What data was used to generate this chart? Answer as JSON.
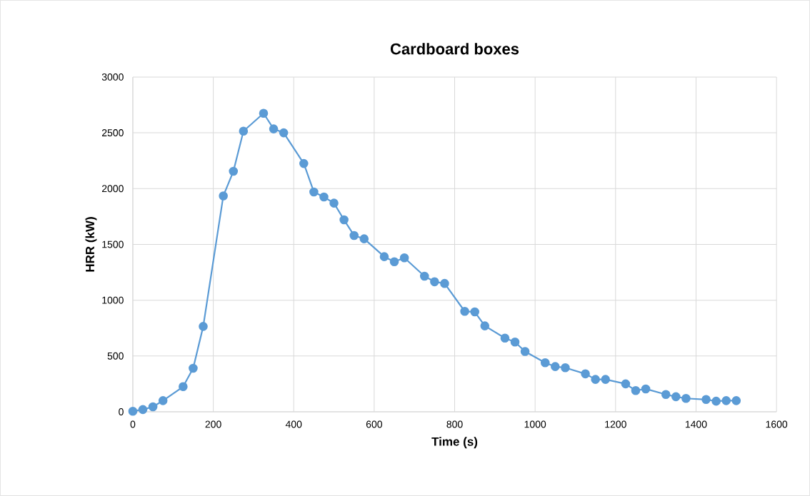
{
  "chart_data": {
    "type": "line",
    "title": "Cardboard boxes",
    "xlabel": "Time (s)",
    "ylabel": "HRR (kW)",
    "x": [
      0,
      25,
      50,
      75,
      125,
      150,
      175,
      225,
      250,
      275,
      325,
      350,
      375,
      425,
      450,
      475,
      500,
      525,
      550,
      575,
      625,
      650,
      675,
      725,
      750,
      775,
      825,
      850,
      875,
      925,
      950,
      975,
      1025,
      1050,
      1075,
      1125,
      1150,
      1175,
      1225,
      1250,
      1275,
      1325,
      1350,
      1375,
      1425,
      1450,
      1475,
      1500
    ],
    "values": [
      5,
      20,
      45,
      100,
      225,
      390,
      765,
      1935,
      2155,
      2515,
      2675,
      2535,
      2500,
      2225,
      1970,
      1925,
      1870,
      1720,
      1580,
      1550,
      1390,
      1345,
      1380,
      1215,
      1165,
      1150,
      900,
      895,
      770,
      660,
      625,
      540,
      440,
      405,
      395,
      340,
      290,
      290,
      250,
      190,
      205,
      155,
      135,
      120,
      110,
      95,
      100,
      100
    ],
    "color": "#5b9bd5",
    "marker": "circle",
    "line_style": "solid",
    "grid": true,
    "xlim": [
      0,
      1600
    ],
    "ylim": [
      0,
      3000
    ],
    "xticks": [
      0,
      200,
      400,
      600,
      800,
      1000,
      1200,
      1400,
      1600
    ],
    "yticks": [
      0,
      500,
      1000,
      1500,
      2000,
      2500,
      3000
    ]
  }
}
